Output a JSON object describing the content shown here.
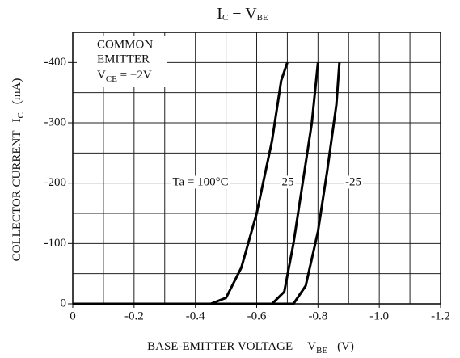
{
  "chart_data": {
    "type": "line",
    "title": [
      "I",
      "C",
      " − V",
      "BE"
    ],
    "x_label": [
      "BASE-EMITTER VOLTAGE",
      "V",
      "BE",
      "(V)"
    ],
    "y_label": [
      "COLLECTOR CURRENT",
      "I",
      "C",
      "(mA)"
    ],
    "annotation": [
      "COMMON",
      "EMITTER",
      "V",
      "CE",
      " = −2V"
    ],
    "xlim": [
      0,
      -1.2
    ],
    "ylim": [
      0,
      -450
    ],
    "xticks": [
      0,
      -0.2,
      -0.4,
      -0.6,
      -0.8,
      {
        "value": -1,
        "label": "-1.0"
      },
      -1.2
    ],
    "yticks": [
      0,
      -100,
      -200,
      -300,
      -400
    ],
    "xgrid": [
      -0.1,
      -0.2,
      -0.3,
      -0.4,
      -0.5,
      -0.6,
      -0.7,
      -0.8,
      -0.9,
      -1,
      -1.1
    ],
    "ygrid": [
      -50,
      -100,
      -150,
      -200,
      -250,
      -300,
      -350,
      -400
    ],
    "color": "#000000",
    "series": [
      {
        "name": "Ta = 100°C",
        "x": [
          0,
          -0.45,
          -0.5,
          -0.55,
          -0.6,
          -0.65,
          -0.68,
          -0.7
        ],
        "values": [
          0,
          0,
          -10,
          -60,
          -150,
          -270,
          -370,
          -400
        ]
      },
      {
        "name": "25",
        "x": [
          0,
          -0.65,
          -0.69,
          -0.72,
          -0.75,
          -0.78,
          -0.8
        ],
        "values": [
          0,
          0,
          -20,
          -100,
          -200,
          -300,
          -400
        ]
      },
      {
        "name": "-25",
        "x": [
          0,
          -0.72,
          -0.76,
          -0.8,
          -0.83,
          -0.86,
          -0.87
        ],
        "values": [
          0,
          0,
          -30,
          -120,
          -220,
          -330,
          -400
        ]
      }
    ]
  }
}
